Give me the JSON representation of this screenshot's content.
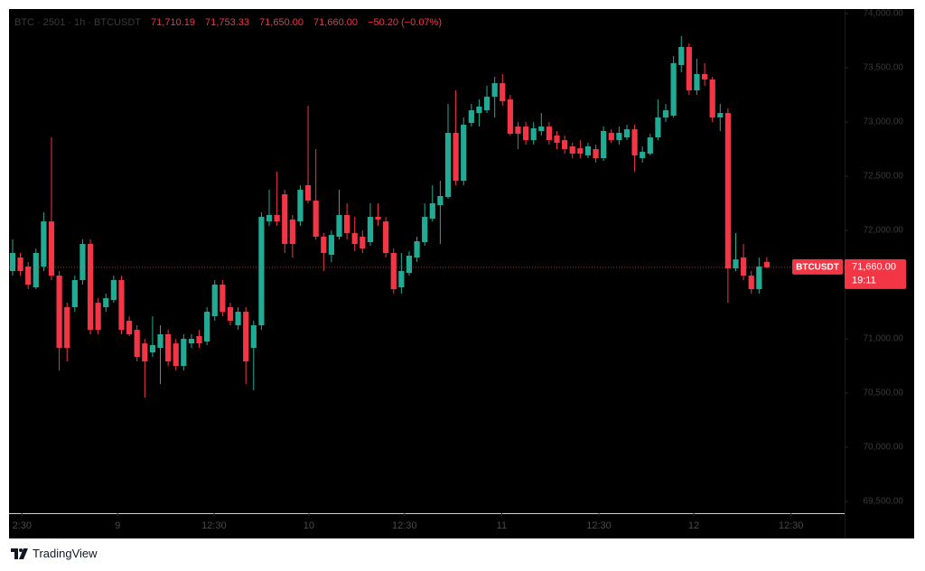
{
  "chart_data": {
    "type": "candlestick",
    "header": {
      "symbol": "BTC · 2501 · 1h · BTCUSDT",
      "open": "71,710.19",
      "high": "71,753.33",
      "low": "71,650.00",
      "close": "71,660.00",
      "change": "−50.20 (−0.07%)"
    },
    "last_label": {
      "symbol": "BTCUSDT",
      "price": "71,660.00",
      "countdown": "19:11"
    },
    "brand": "TradingView",
    "up_color": "#22ab94",
    "down_color": "#f23645",
    "open": [
      71625,
      71750,
      71667,
      71475,
      71667,
      72083,
      71583,
      71292,
      71292,
      71542,
      71875,
      71333,
      71292,
      71358,
      71542,
      71167,
      71083,
      70958,
      70875,
      70917,
      71042,
      70958,
      70750,
      70958,
      71025,
      70975,
      71208,
      71500,
      71292,
      71125,
      71250,
      70917,
      71125,
      72083,
      72142,
      72333,
      72100,
      72083,
      72417,
      72275,
      71942,
      71775,
      71942,
      72142,
      71975,
      71942,
      71892,
      72125,
      72083,
      71792,
      71475,
      71608,
      71750,
      71892,
      72108,
      72233,
      72308,
      72900,
      72458,
      72992,
      73083,
      73108,
      73233,
      73358,
      73208,
      72958,
      72958,
      72833,
      72917,
      72958,
      72875,
      72833,
      72775,
      72758,
      72692,
      72750,
      72667,
      72900,
      72833,
      72858,
      72933,
      72667,
      72708,
      72858,
      73042,
      73058,
      73525,
      73692,
      73292,
      73442,
      73392,
      73042,
      73083,
      71650,
      71750,
      71583,
      71458,
      71710.19
    ],
    "high": [
      71917,
      71792,
      71708,
      71833,
      72167,
      72858,
      71625,
      71333,
      71583,
      71917,
      71917,
      71375,
      71417,
      71583,
      71583,
      71208,
      71125,
      71000,
      71208,
      71125,
      71083,
      71000,
      71042,
      71042,
      71083,
      71292,
      71542,
      71542,
      71333,
      71292,
      71292,
      71167,
      72167,
      72375,
      72542,
      72375,
      72142,
      72417,
      73150,
      72750,
      71975,
      72000,
      72375,
      72250,
      72125,
      72000,
      72250,
      72250,
      72125,
      71833,
      71792,
      71808,
      71942,
      72250,
      72417,
      72458,
      73167,
      73292,
      73042,
      73167,
      73208,
      73333,
      73417,
      73442,
      73250,
      73000,
      73000,
      73000,
      73083,
      73000,
      72917,
      72875,
      72808,
      72833,
      72808,
      72792,
      72958,
      72933,
      72958,
      72975,
      72975,
      72775,
      72892,
      73208,
      73167,
      73608,
      73792,
      73725,
      73583,
      73542,
      73417,
      73167,
      73125,
      71975,
      71875,
      71625,
      71750,
      71753.33
    ],
    "low": [
      71583,
      71583,
      71458,
      71458,
      71625,
      71542,
      70708,
      70792,
      71250,
      71500,
      71042,
      71042,
      71250,
      71333,
      71042,
      71025,
      70792,
      70458,
      70833,
      70583,
      70750,
      70708,
      70708,
      70917,
      70917,
      70942,
      71167,
      71208,
      71125,
      71083,
      70583,
      70525,
      71083,
      72042,
      72042,
      71792,
      71750,
      72042,
      72250,
      71917,
      71625,
      71708,
      71917,
      71917,
      71808,
      71792,
      71858,
      72042,
      71750,
      71417,
      71417,
      71583,
      71708,
      71858,
      72083,
      71875,
      72292,
      72417,
      72417,
      72958,
      72958,
      73083,
      73042,
      73150,
      72875,
      72750,
      72792,
      72792,
      72875,
      72792,
      72750,
      72708,
      72667,
      72667,
      72667,
      72625,
      72642,
      72808,
      72792,
      72833,
      72542,
      72625,
      72692,
      72833,
      73000,
      73042,
      73458,
      73250,
      73250,
      73333,
      73000,
      72917,
      71333,
      71625,
      71542,
      71417,
      71417,
      71650
    ],
    "close": [
      71792,
      71625,
      71500,
      71792,
      72083,
      71583,
      70917,
      70917,
      71542,
      71875,
      71083,
      71083,
      71375,
      71542,
      71083,
      71042,
      70833,
      70792,
      70942,
      71042,
      70792,
      70750,
      71000,
      71000,
      70958,
      71250,
      71500,
      71250,
      71167,
      71250,
      70792,
      71125,
      72125,
      72142,
      72083,
      71875,
      71875,
      72375,
      72275,
      71942,
      71792,
      71958,
      72142,
      71975,
      71875,
      71833,
      72125,
      72100,
      71792,
      71458,
      71625,
      71767,
      71900,
      72125,
      72250,
      72317,
      72900,
      72458,
      72975,
      73108,
      73142,
      73233,
      73358,
      73192,
      72892,
      72892,
      72833,
      72942,
      72958,
      72833,
      72808,
      72750,
      72708,
      72708,
      72775,
      72667,
      72917,
      72833,
      72900,
      72933,
      72692,
      72725,
      72858,
      73042,
      73108,
      73542,
      73692,
      73292,
      73442,
      73392,
      73042,
      73083,
      71650,
      71733,
      71583,
      71458,
      71667,
      71660
    ],
    "xlim": [
      -0.46,
      107.0
    ],
    "xticks": [
      {
        "value": 1.2,
        "label": "2:30"
      },
      {
        "value": 13.5,
        "label": "9"
      },
      {
        "value": 25.9,
        "label": "12:30"
      },
      {
        "value": 38.1,
        "label": "10"
      },
      {
        "value": 50.4,
        "label": "12:30"
      },
      {
        "value": 62.9,
        "label": "11"
      },
      {
        "value": 75.4,
        "label": "12:30"
      },
      {
        "value": 87.6,
        "label": "12"
      },
      {
        "value": 100.1,
        "label": "12:30"
      }
    ],
    "ylim": [
      69392,
      74042
    ],
    "yticks": [
      {
        "value": 74000,
        "label": "74,000.00"
      },
      {
        "value": 73500,
        "label": "73,500.00"
      },
      {
        "value": 73000,
        "label": "73,000.00"
      },
      {
        "value": 72500,
        "label": "72,500.00"
      },
      {
        "value": 72000,
        "label": "72,000.00"
      },
      {
        "value": 71500,
        "label": "71,500.00"
      },
      {
        "value": 71000,
        "label": "71,000.00"
      },
      {
        "value": 70500,
        "label": "70,500.00"
      },
      {
        "value": 70000,
        "label": "70,000.00"
      },
      {
        "value": 69500,
        "label": "69,500.00"
      }
    ],
    "grid": false
  }
}
